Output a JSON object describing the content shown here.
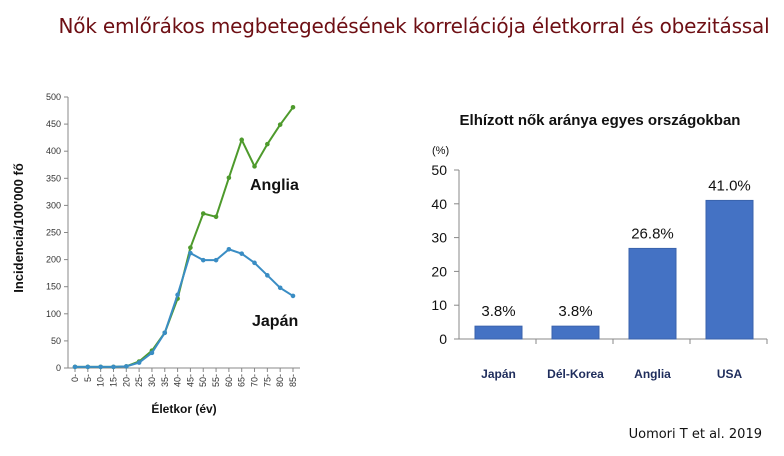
{
  "title": "Nők emlőrákos megbetegedésének korrelációja életkorral és obezitással",
  "citation": "Uomori T et al. 2019",
  "colors": {
    "title": "#6e0f14",
    "anglia": "#4e9a2c",
    "japan": "#3a8dc4",
    "bar": "#4472c4",
    "bar_label": "#1f2d5c"
  },
  "chart_data": [
    {
      "type": "line",
      "xlabel": "Életkor (év)",
      "ylabel": "Incidencia/100'000 fő",
      "ylim": [
        0,
        500
      ],
      "yticks": [
        0,
        50,
        100,
        150,
        200,
        250,
        300,
        350,
        400,
        450,
        500
      ],
      "categories": [
        "0-",
        "5-",
        "10-",
        "15-",
        "20-",
        "25-",
        "30-",
        "35-",
        "40-",
        "45-",
        "50-",
        "55-",
        "60-",
        "65-",
        "70-",
        "75-",
        "80-",
        "85-"
      ],
      "series": [
        {
          "name": "Anglia",
          "values": [
            2,
            2,
            2,
            2,
            3,
            12,
            32,
            65,
            128,
            222,
            285,
            279,
            351,
            421,
            372,
            413,
            449,
            481
          ]
        },
        {
          "name": "Japán",
          "values": [
            2,
            2,
            2,
            2,
            3,
            10,
            28,
            65,
            135,
            212,
            199,
            199,
            219,
            211,
            194,
            171,
            148,
            133
          ]
        }
      ],
      "grid": false
    },
    {
      "type": "bar",
      "title": "Elhízott nők aránya egyes országokban",
      "ylabel": "(%)",
      "ylim": [
        0,
        50
      ],
      "yticks": [
        0,
        10,
        20,
        30,
        40,
        50
      ],
      "categories": [
        "Japán",
        "Dél-Korea",
        "Anglia",
        "USA"
      ],
      "values": [
        3.8,
        3.8,
        26.8,
        41.0
      ],
      "data_labels": [
        "3.8%",
        "3.8%",
        "26.8%",
        "41.0%"
      ],
      "grid": false
    }
  ]
}
